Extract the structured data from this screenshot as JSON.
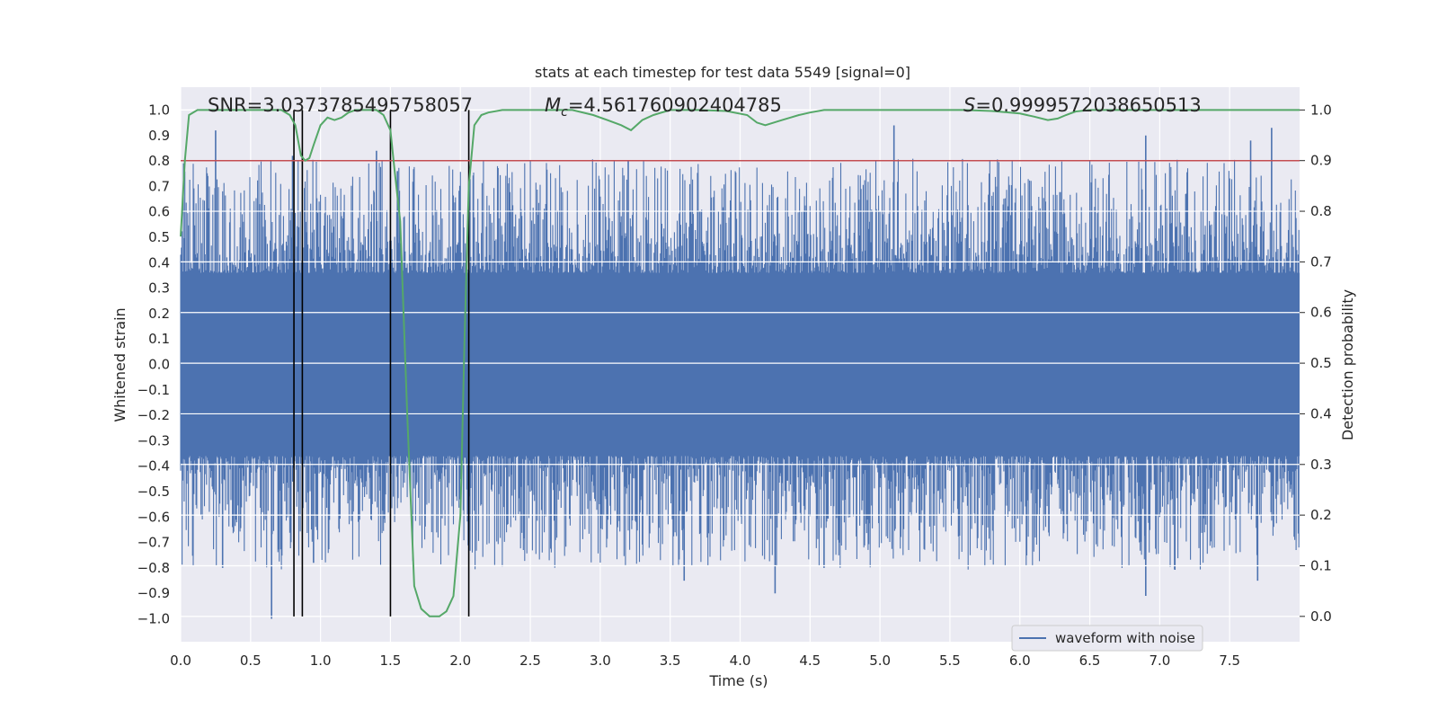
{
  "chart_data": {
    "type": "line",
    "title": "stats at each timestep for test data 5549 [signal=0]",
    "xlabel": "Time (s)",
    "ylabel": "Whitened strain",
    "y2label": "Detection probability",
    "xlim": [
      0.0,
      8.0
    ],
    "ylim": [
      -1.09,
      1.09
    ],
    "y2lim": [
      -0.05,
      1.045
    ],
    "x_ticks": [
      "0.0",
      "0.5",
      "1.0",
      "1.5",
      "2.0",
      "2.5",
      "3.0",
      "3.5",
      "4.0",
      "4.5",
      "5.0",
      "5.5",
      "6.0",
      "6.5",
      "7.0",
      "7.5"
    ],
    "y_ticks": [
      "1.0",
      "0.9",
      "0.8",
      "0.7",
      "0.6",
      "0.5",
      "0.4",
      "0.3",
      "0.2",
      "0.1",
      "0.0",
      "-0.1",
      "-0.2",
      "-0.3",
      "-0.4",
      "-0.5",
      "-0.6",
      "-0.7",
      "-0.8",
      "-0.9",
      "-1.0"
    ],
    "y2_ticks": [
      "1.0",
      "0.9",
      "0.8",
      "0.7",
      "0.6",
      "0.5",
      "0.4",
      "0.3",
      "0.2",
      "0.1",
      "0.0"
    ],
    "annotations": {
      "snr": "SNR=3.0373785495758057",
      "mc_symbol": "M",
      "mc_sub": "c",
      "mc_value": "=4.561760902404785",
      "s_symbol": "S",
      "s_value": "=0.9999572038650513"
    },
    "legend": {
      "label": "waveform with noise",
      "position": "lower-right"
    },
    "threshold": {
      "value": 0.9,
      "axis": "y2",
      "color": "#c44e52"
    },
    "vlines": [
      0.81,
      0.87,
      1.5,
      2.06
    ],
    "series": [
      {
        "name": "waveform with noise",
        "axis": "y",
        "color": "#4c72b0",
        "kind": "noise",
        "n": 1600,
        "core_envelope": 0.36,
        "spikes": [
          {
            "x": 0.25,
            "y": 0.92
          },
          {
            "x": 0.8,
            "y": 0.82
          },
          {
            "x": 1.4,
            "y": 0.84
          },
          {
            "x": 1.55,
            "y": 0.76
          },
          {
            "x": 5.1,
            "y": 0.94
          },
          {
            "x": 6.9,
            "y": 0.9
          },
          {
            "x": 7.8,
            "y": 0.93
          },
          {
            "x": 7.65,
            "y": 0.88
          },
          {
            "x": 3.2,
            "y": 0.8
          },
          {
            "x": 0.65,
            "y": -1.0
          },
          {
            "x": 4.25,
            "y": -0.9
          },
          {
            "x": 6.9,
            "y": -0.91
          },
          {
            "x": 3.6,
            "y": -0.85
          },
          {
            "x": 7.7,
            "y": -0.85
          },
          {
            "x": 0.3,
            "y": -0.8
          },
          {
            "x": 4.6,
            "y": -0.8
          },
          {
            "x": 0.95,
            "y": -0.78
          }
        ]
      },
      {
        "name": "detection probability",
        "axis": "y2",
        "color": "#55a868",
        "x": [
          0.0,
          0.03,
          0.06,
          0.12,
          0.2,
          0.3,
          0.5,
          0.6,
          0.72,
          0.78,
          0.82,
          0.86,
          0.89,
          0.92,
          0.95,
          1.0,
          1.05,
          1.1,
          1.15,
          1.2,
          1.25,
          1.3,
          1.35,
          1.4,
          1.45,
          1.5,
          1.53,
          1.57,
          1.62,
          1.67,
          1.72,
          1.78,
          1.85,
          1.9,
          1.95,
          2.0,
          2.03,
          2.06,
          2.1,
          2.15,
          2.2,
          2.3,
          2.5,
          2.8,
          2.95,
          3.05,
          3.15,
          3.22,
          3.3,
          3.38,
          3.5,
          3.7,
          3.9,
          4.05,
          4.12,
          4.18,
          4.24,
          4.3,
          4.36,
          4.42,
          4.5,
          4.6,
          5.0,
          5.6,
          5.8,
          6.0,
          6.1,
          6.2,
          6.27,
          6.33,
          6.4,
          6.5,
          7.0,
          7.5,
          8.0
        ],
        "y": [
          0.75,
          0.9,
          0.99,
          1.0,
          1.0,
          1.0,
          1.0,
          1.0,
          1.0,
          0.99,
          0.97,
          0.91,
          0.9,
          0.905,
          0.93,
          0.97,
          0.985,
          0.98,
          0.985,
          0.995,
          1.0,
          1.0,
          1.0,
          1.0,
          0.99,
          0.96,
          0.88,
          0.78,
          0.4,
          0.06,
          0.015,
          0.0,
          0.0,
          0.01,
          0.04,
          0.2,
          0.55,
          0.85,
          0.97,
          0.99,
          0.995,
          1.0,
          1.0,
          1.0,
          0.99,
          0.98,
          0.97,
          0.96,
          0.98,
          0.99,
          1.0,
          1.0,
          0.998,
          0.99,
          0.975,
          0.97,
          0.975,
          0.98,
          0.985,
          0.99,
          0.995,
          1.0,
          1.0,
          1.0,
          0.998,
          0.993,
          0.987,
          0.98,
          0.983,
          0.99,
          0.997,
          1.0,
          1.0,
          1.0,
          1.0
        ]
      }
    ]
  }
}
